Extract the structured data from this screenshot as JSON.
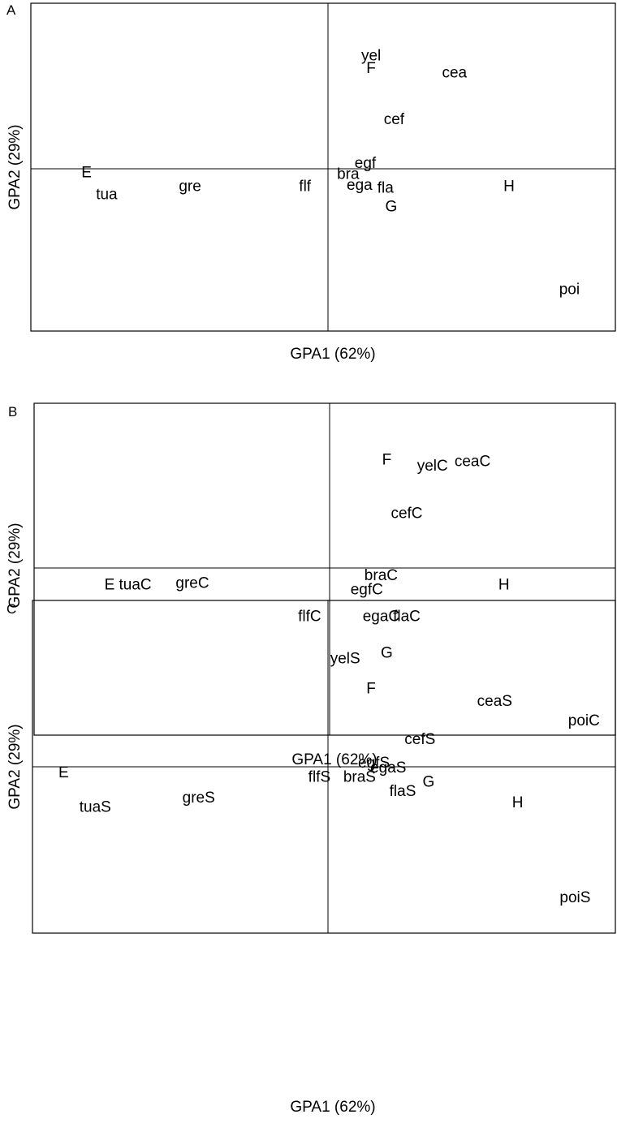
{
  "chart_data": [
    {
      "type": "scatter",
      "panel_label": "A",
      "xlabel": "GPA1 (62%)",
      "ylabel": "GPA2 (29%)",
      "grid": false,
      "points": [
        {
          "label": "yel",
          "x": 0.15,
          "y": 0.68
        },
        {
          "label": "F",
          "x": 0.15,
          "y": 0.6
        },
        {
          "label": "cea",
          "x": 0.44,
          "y": 0.57
        },
        {
          "label": "cef",
          "x": 0.23,
          "y": 0.27
        },
        {
          "label": "egf",
          "x": 0.13,
          "y": -0.01
        },
        {
          "label": "bra",
          "x": 0.07,
          "y": -0.08
        },
        {
          "label": "E",
          "x": -0.84,
          "y": -0.07
        },
        {
          "label": "tua",
          "x": -0.77,
          "y": -0.21
        },
        {
          "label": "gre",
          "x": -0.48,
          "y": -0.16
        },
        {
          "label": "flf",
          "x": -0.08,
          "y": -0.16
        },
        {
          "label": "ega",
          "x": 0.11,
          "y": -0.15
        },
        {
          "label": "fla",
          "x": 0.2,
          "y": -0.17
        },
        {
          "label": "H",
          "x": 0.63,
          "y": -0.16
        },
        {
          "label": "G",
          "x": 0.22,
          "y": -0.29
        },
        {
          "label": "poi",
          "x": 0.84,
          "y": -0.82
        }
      ]
    },
    {
      "type": "scatter",
      "panel_label": "B",
      "xlabel": "GPA1 (62%)",
      "ylabel": "GPA2 (29%)",
      "grid": false,
      "points": [
        {
          "label": "F",
          "x": 0.2,
          "y": 0.68
        },
        {
          "label": "yelC",
          "x": 0.36,
          "y": 0.64
        },
        {
          "label": "ceaC",
          "x": 0.5,
          "y": 0.67
        },
        {
          "label": "cefC",
          "x": 0.27,
          "y": 0.34
        },
        {
          "label": "braC",
          "x": 0.18,
          "y": -0.05
        },
        {
          "label": "H",
          "x": 0.61,
          "y": -0.11
        },
        {
          "label": "E",
          "x": -0.77,
          "y": -0.11
        },
        {
          "label": "tuaC",
          "x": -0.68,
          "y": -0.11
        },
        {
          "label": "greC",
          "x": -0.48,
          "y": -0.1
        },
        {
          "label": "egfC",
          "x": 0.13,
          "y": -0.14
        },
        {
          "label": "flfC",
          "x": -0.07,
          "y": -0.31
        },
        {
          "label": "egaC",
          "x": 0.18,
          "y": -0.31
        },
        {
          "label": "flaC",
          "x": 0.27,
          "y": -0.31
        },
        {
          "label": "G",
          "x": 0.2,
          "y": -0.54
        },
        {
          "label": "poiC",
          "x": 0.89,
          "y": -0.97
        }
      ]
    },
    {
      "type": "scatter",
      "panel_label": "C",
      "xlabel": "GPA1 (62%)",
      "ylabel": "GPA2 (29%)",
      "grid": false,
      "points": [
        {
          "label": "yelS",
          "x": 0.06,
          "y": 0.68
        },
        {
          "label": "F",
          "x": 0.15,
          "y": 0.49
        },
        {
          "label": "ceaS",
          "x": 0.58,
          "y": 0.41
        },
        {
          "label": "cefS",
          "x": 0.32,
          "y": 0.17
        },
        {
          "label": "egfS",
          "x": 0.16,
          "y": 0.02
        },
        {
          "label": "egaS",
          "x": 0.21,
          "y": -0.01
        },
        {
          "label": "E",
          "x": -0.92,
          "y": -0.04
        },
        {
          "label": "flfS",
          "x": -0.03,
          "y": -0.07
        },
        {
          "label": "braS",
          "x": 0.11,
          "y": -0.07
        },
        {
          "label": "G",
          "x": 0.35,
          "y": -0.1
        },
        {
          "label": "flaS",
          "x": 0.26,
          "y": -0.16
        },
        {
          "label": "greS",
          "x": -0.45,
          "y": -0.2
        },
        {
          "label": "H",
          "x": 0.66,
          "y": -0.23
        },
        {
          "label": "tuaS",
          "x": -0.81,
          "y": -0.26
        },
        {
          "label": "poiS",
          "x": 0.86,
          "y": -0.83
        }
      ]
    }
  ]
}
